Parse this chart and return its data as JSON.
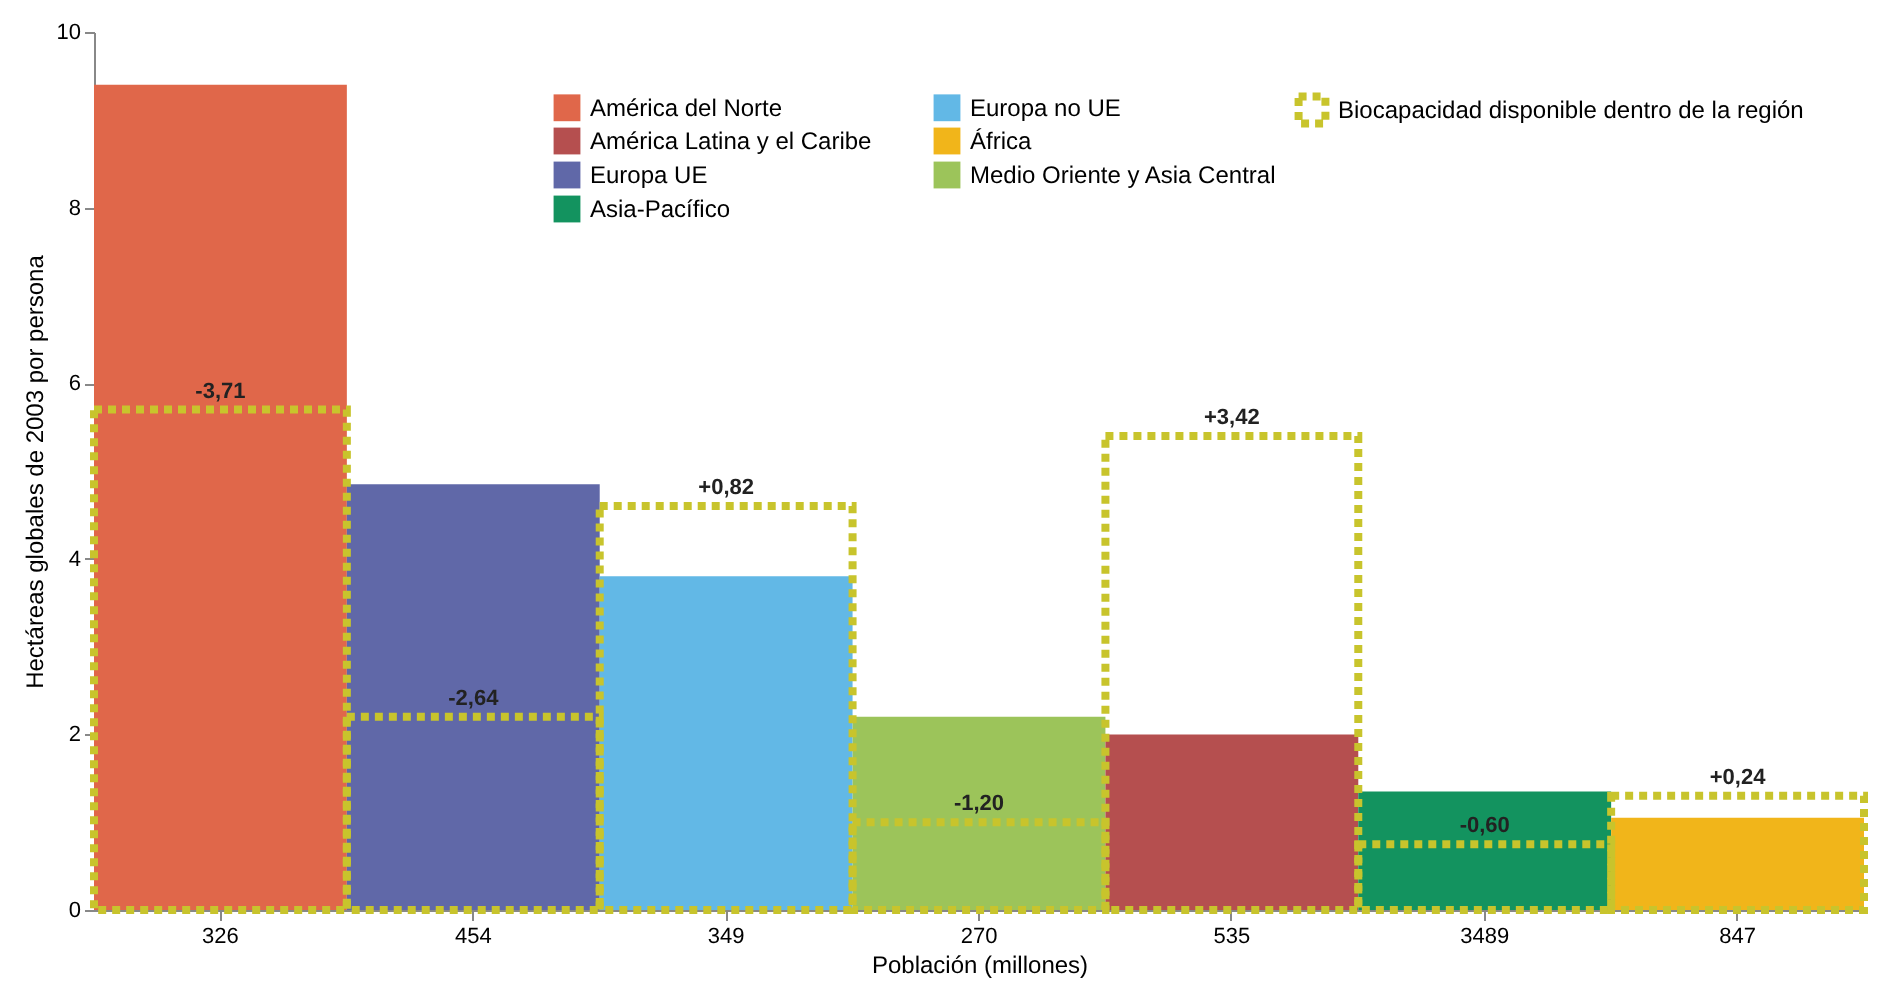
{
  "chart_data": {
    "type": "bar",
    "categories": [
      "326",
      "454",
      "349",
      "270",
      "535",
      "3489",
      "847"
    ],
    "xlabel": "Población (millones)",
    "ylabel": "Hectáreas globales de 2003 por persona",
    "ylim": [
      0,
      10
    ],
    "yticks": [
      0,
      2,
      4,
      6,
      8,
      10
    ],
    "legend": "top right",
    "series": [
      {
        "name": "América del Norte",
        "color": "#e0674a",
        "values": [
          9.4,
          null,
          null,
          null,
          null,
          null,
          null
        ]
      },
      {
        "name": "Europa UE",
        "color": "#6068a8",
        "values": [
          null,
          4.85,
          null,
          null,
          null,
          null,
          null
        ]
      },
      {
        "name": "Europa no UE",
        "color": "#62b8e6",
        "values": [
          null,
          null,
          3.8,
          null,
          null,
          null,
          null
        ]
      },
      {
        "name": "Medio Oriente y Asia Central",
        "color": "#9cc45a",
        "values": [
          null,
          null,
          null,
          2.2,
          null,
          null,
          null
        ]
      },
      {
        "name": "América Latina y el Caribe",
        "color": "#b54f4f",
        "values": [
          null,
          null,
          null,
          null,
          2.0,
          null,
          null
        ]
      },
      {
        "name": "Asia-Pacífico",
        "color": "#13935f",
        "values": [
          null,
          null,
          null,
          null,
          null,
          1.35,
          null
        ]
      },
      {
        "name": "África",
        "color": "#f1b51a",
        "values": [
          null,
          null,
          null,
          null,
          null,
          null,
          1.05
        ]
      },
      {
        "name": "Biocapacidad disponible dentro de la región",
        "color": "#c8c42c",
        "line_style": "dotted",
        "values": [
          5.7,
          2.2,
          4.6,
          1.0,
          5.4,
          0.75,
          1.3
        ]
      }
    ],
    "annotations": [
      {
        "text": "-3,71",
        "x": "326",
        "y": 5.7
      },
      {
        "text": "-2,64",
        "x": "454",
        "y": 2.2
      },
      {
        "text": "+0,82",
        "x": "349",
        "y": 4.6
      },
      {
        "text": "-1,20",
        "x": "270",
        "y": 1.0
      },
      {
        "text": "+3,42",
        "x": "535",
        "y": 5.4
      },
      {
        "text": "-0,60",
        "x": "3489",
        "y": 0.75
      },
      {
        "text": "+0,24",
        "x": "847",
        "y": 1.3
      }
    ]
  }
}
